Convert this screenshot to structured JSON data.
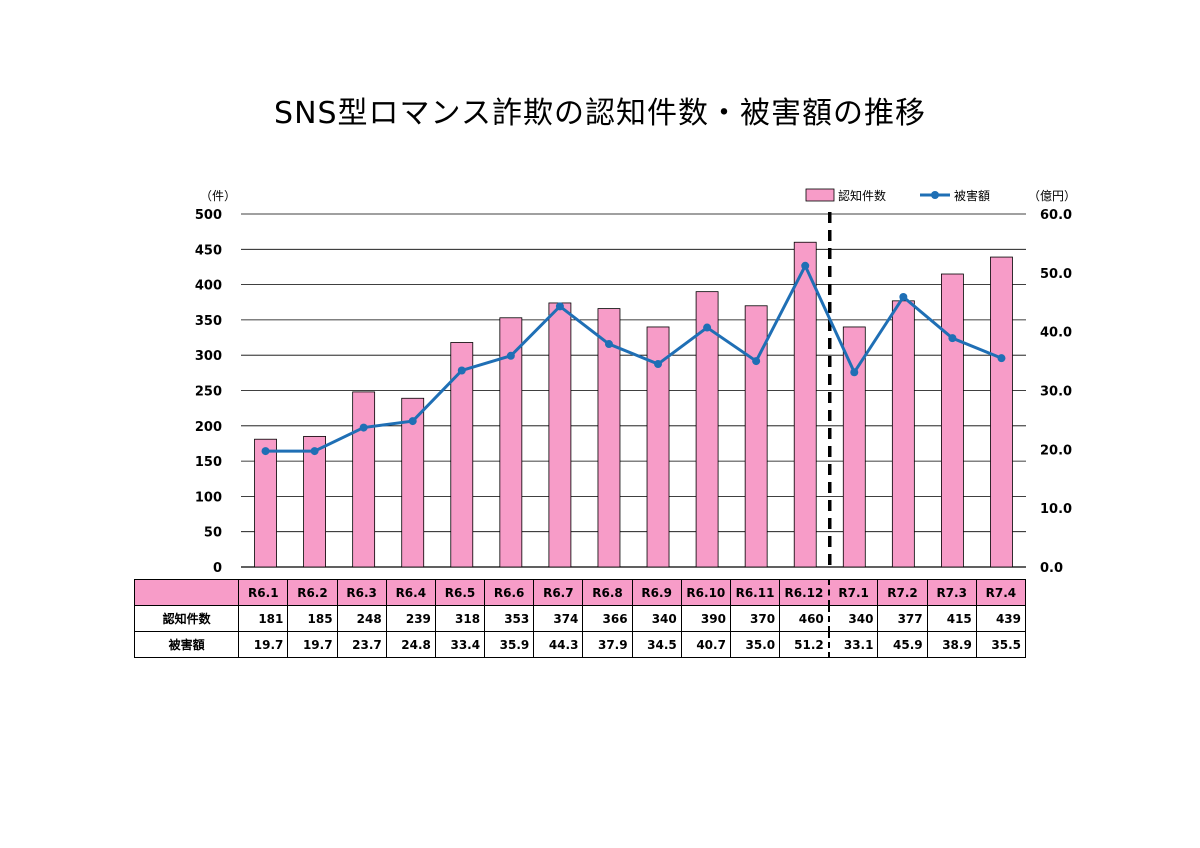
{
  "chart_data": {
    "type": "bar+line",
    "title": "SNS型ロマンス詐欺の認知件数・被害額の推移",
    "categories": [
      "R6.1",
      "R6.2",
      "R6.3",
      "R6.4",
      "R6.5",
      "R6.6",
      "R6.7",
      "R6.8",
      "R6.9",
      "R6.10",
      "R6.11",
      "R6.12",
      "R7.1",
      "R7.2",
      "R7.3",
      "R7.4"
    ],
    "series": [
      {
        "name": "認知件数",
        "type": "bar",
        "axis": "left",
        "color": "#f79cc8",
        "values": [
          181,
          185,
          248,
          239,
          318,
          353,
          374,
          366,
          340,
          390,
          370,
          460,
          340,
          377,
          415,
          439
        ]
      },
      {
        "name": "被害額",
        "type": "line",
        "axis": "right",
        "color": "#1f6fb5",
        "values": [
          19.7,
          19.7,
          23.7,
          24.8,
          33.4,
          35.9,
          44.3,
          37.9,
          34.5,
          40.7,
          35.0,
          51.2,
          33.1,
          45.9,
          38.9,
          35.5
        ]
      }
    ],
    "left_axis": {
      "unit": "（件）",
      "ylim": [
        0,
        500
      ],
      "ticks": [
        0,
        50,
        100,
        150,
        200,
        250,
        300,
        350,
        400,
        450,
        500
      ]
    },
    "right_axis": {
      "unit": "（億円）",
      "ylim": [
        0,
        60
      ],
      "ticks": [
        "0.0",
        "10.0",
        "20.0",
        "30.0",
        "40.0",
        "50.0",
        "60.0"
      ]
    },
    "grid": true,
    "legend_position": "top-right",
    "divider_after": "R6.12",
    "table_rows": [
      {
        "label": "認知件数",
        "values": [
          "181",
          "185",
          "248",
          "239",
          "318",
          "353",
          "374",
          "366",
          "340",
          "390",
          "370",
          "460",
          "340",
          "377",
          "415",
          "439"
        ]
      },
      {
        "label": "被害額",
        "values": [
          "19.7",
          "19.7",
          "23.7",
          "24.8",
          "33.4",
          "35.9",
          "44.3",
          "37.9",
          "34.5",
          "40.7",
          "35.0",
          "51.2",
          "33.1",
          "45.9",
          "38.9",
          "35.5"
        ]
      }
    ]
  }
}
